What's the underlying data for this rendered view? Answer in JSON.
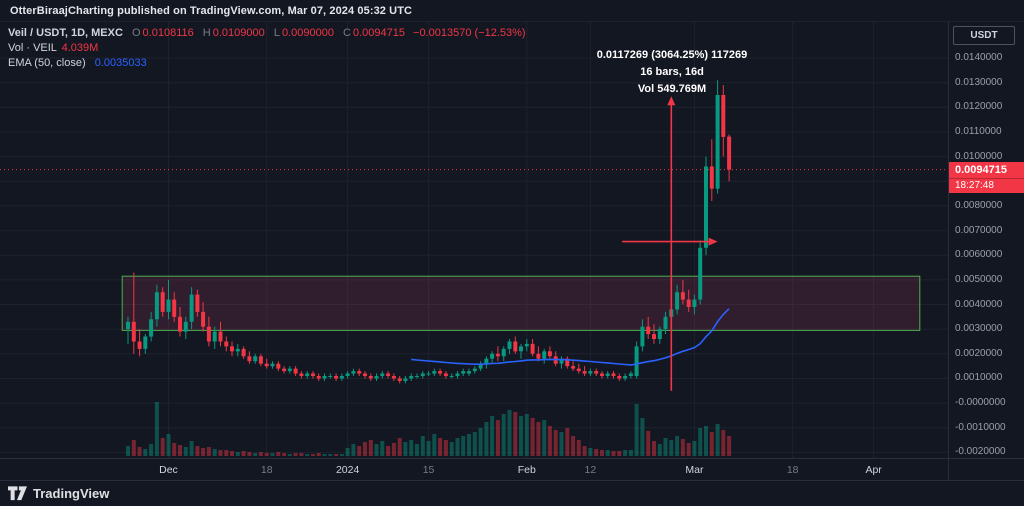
{
  "header": {
    "published_line": "OtterBiraajCharting published on TradingView.com, Mar 07, 2024 05:32 UTC"
  },
  "legend": {
    "title": "Veil / USDT, 1D, MEXC",
    "o_label": "O",
    "o": "0.0108116",
    "h_label": "H",
    "h": "0.0109000",
    "l_label": "L",
    "l": "0.0090000",
    "c_label": "C",
    "c": "0.0094715",
    "change": "−0.0013570 (−12.53%)",
    "vol_label": "Vol · VEIL",
    "vol_value": "4.039M",
    "ema_label": "EMA (50, close)",
    "ema_value": "0.0035033"
  },
  "annotation": {
    "line1": "0.0117269 (3064.25%) 117269",
    "line2": "16 bars, 16d",
    "line3": "Vol 549.769M"
  },
  "price_axis": {
    "currency_button": "USDT",
    "last_price_label": "0.0094715",
    "countdown": "18:27:48"
  },
  "watermark": {
    "brand": "TradingView"
  },
  "colors": {
    "background": "#131722",
    "grid": "#1e222d",
    "up": "#089981",
    "down": "#f23645",
    "vol_up": "rgba(8,153,129,0.45)",
    "vol_down": "rgba(242,54,69,0.45)",
    "ema": "#2962ff",
    "rect_border": "#4caf50",
    "rect_fill": "rgba(155,60,96,0.22)",
    "arrow": "#f23645",
    "badge_bg": "#f23645",
    "text_primary": "#d1d4dc",
    "text_secondary": "#787b86"
  },
  "chart_data": {
    "type": "candlestick",
    "title": "Veil / USDT, 1D, MEXC",
    "interval": "1D",
    "last_price": 0.0094715,
    "ema_period": 50,
    "y_ticks": [
      "0.0140000",
      "0.0130000",
      "0.0120000",
      "0.0110000",
      "0.0100000",
      "0.0090000",
      "0.0080000",
      "0.0070000",
      "0.0060000",
      "0.0050000",
      "0.0040000",
      "0.0030000",
      "0.0020000",
      "0.0010000",
      "-0.0000000",
      "-0.0010000",
      "-0.0020000"
    ],
    "x_labels": [
      {
        "text": "Dec",
        "day": 7,
        "major": true
      },
      {
        "text": "18",
        "day": 24,
        "major": false
      },
      {
        "text": "2024",
        "day": 38,
        "major": true
      },
      {
        "text": "15",
        "day": 52,
        "major": false
      },
      {
        "text": "Feb",
        "day": 69,
        "major": true
      },
      {
        "text": "12",
        "day": 80,
        "major": false
      },
      {
        "text": "Mar",
        "day": 98,
        "major": true
      },
      {
        "text": "18",
        "day": 115,
        "major": false
      },
      {
        "text": "Apr",
        "day": 129,
        "major": true
      }
    ],
    "rectangle": {
      "day_start": -1,
      "day_end": 137,
      "price_top": 0.00515,
      "price_bottom": 0.00295
    },
    "measure_arrow": {
      "day": 94,
      "price_from": 0.0005,
      "price_to": 0.01245
    },
    "horiz_arrow": {
      "day_from": 85.5,
      "day_to": 102,
      "price": 0.00655
    },
    "candles": [
      [
        0.003,
        0.0035,
        0.0024,
        0.0033,
        10
      ],
      [
        0.0033,
        0.0053,
        0.002,
        0.0025,
        16
      ],
      [
        0.0025,
        0.003,
        0.0019,
        0.0022,
        9
      ],
      [
        0.0022,
        0.0028,
        0.002,
        0.0027,
        7
      ],
      [
        0.0027,
        0.0037,
        0.0025,
        0.0034,
        12
      ],
      [
        0.0034,
        0.0048,
        0.0031,
        0.0045,
        54
      ],
      [
        0.0045,
        0.0047,
        0.0035,
        0.0037,
        18
      ],
      [
        0.0037,
        0.005,
        0.0034,
        0.0042,
        22
      ],
      [
        0.0042,
        0.0045,
        0.0033,
        0.0035,
        13
      ],
      [
        0.0035,
        0.0039,
        0.0027,
        0.0029,
        11
      ],
      [
        0.0029,
        0.0035,
        0.0026,
        0.0033,
        9
      ],
      [
        0.0033,
        0.0047,
        0.003,
        0.0044,
        15
      ],
      [
        0.0044,
        0.0046,
        0.0035,
        0.0037,
        10
      ],
      [
        0.0037,
        0.0041,
        0.0029,
        0.0031,
        8
      ],
      [
        0.0031,
        0.0035,
        0.0023,
        0.0025,
        9
      ],
      [
        0.0025,
        0.0031,
        0.0022,
        0.0029,
        7
      ],
      [
        0.0029,
        0.0033,
        0.0023,
        0.0025,
        6
      ],
      [
        0.0025,
        0.0027,
        0.0021,
        0.0023,
        6
      ],
      [
        0.0023,
        0.0025,
        0.0019,
        0.0021,
        5
      ],
      [
        0.0021,
        0.0024,
        0.0019,
        0.0022,
        4
      ],
      [
        0.0022,
        0.0023,
        0.0018,
        0.0019,
        5
      ],
      [
        0.0019,
        0.0021,
        0.0016,
        0.0017,
        4
      ],
      [
        0.0017,
        0.002,
        0.0016,
        0.0019,
        3
      ],
      [
        0.0019,
        0.002,
        0.0015,
        0.0016,
        4
      ],
      [
        0.0016,
        0.0018,
        0.0014,
        0.0015,
        3
      ],
      [
        0.0015,
        0.0017,
        0.0014,
        0.0016,
        3
      ],
      [
        0.0016,
        0.0017,
        0.0013,
        0.0014,
        4
      ],
      [
        0.0014,
        0.0015,
        0.0012,
        0.0013,
        3
      ],
      [
        0.0013,
        0.0015,
        0.0012,
        0.0014,
        2
      ],
      [
        0.0014,
        0.0015,
        0.0011,
        0.0012,
        3
      ],
      [
        0.0012,
        0.0013,
        0.001,
        0.0011,
        3
      ],
      [
        0.0011,
        0.0013,
        0.001,
        0.0012,
        2
      ],
      [
        0.0012,
        0.0013,
        0.001,
        0.0011,
        2
      ],
      [
        0.0011,
        0.0012,
        0.0009,
        0.001,
        3
      ],
      [
        0.001,
        0.0012,
        0.0009,
        0.0011,
        2
      ],
      [
        0.0011,
        0.0012,
        0.001,
        0.0011,
        2
      ],
      [
        0.0011,
        0.0012,
        0.0009,
        0.001,
        2
      ],
      [
        0.001,
        0.0012,
        0.0009,
        0.0011,
        2
      ],
      [
        0.0011,
        0.0013,
        0.001,
        0.0012,
        8
      ],
      [
        0.0012,
        0.0014,
        0.0011,
        0.0013,
        12
      ],
      [
        0.0013,
        0.0014,
        0.0011,
        0.0012,
        10
      ],
      [
        0.0012,
        0.0013,
        0.001,
        0.0011,
        14
      ],
      [
        0.0011,
        0.0012,
        0.0009,
        0.001,
        16
      ],
      [
        0.001,
        0.0012,
        0.0009,
        0.0011,
        12
      ],
      [
        0.0011,
        0.0013,
        0.001,
        0.0012,
        15
      ],
      [
        0.0012,
        0.0013,
        0.001,
        0.0011,
        10
      ],
      [
        0.0011,
        0.0012,
        0.0009,
        0.001,
        13
      ],
      [
        0.001,
        0.0011,
        0.0008,
        0.0009,
        18
      ],
      [
        0.0009,
        0.0011,
        0.0008,
        0.001,
        14
      ],
      [
        0.001,
        0.0012,
        0.0009,
        0.0011,
        16
      ],
      [
        0.0011,
        0.0012,
        0.001,
        0.0011,
        12
      ],
      [
        0.0011,
        0.0013,
        0.001,
        0.0012,
        20
      ],
      [
        0.0012,
        0.0013,
        0.0011,
        0.0012,
        15
      ],
      [
        0.0012,
        0.0014,
        0.0011,
        0.0013,
        22
      ],
      [
        0.0013,
        0.0014,
        0.0011,
        0.0012,
        18
      ],
      [
        0.0012,
        0.0013,
        0.001,
        0.0011,
        16
      ],
      [
        0.0011,
        0.0012,
        0.001,
        0.0011,
        14
      ],
      [
        0.0011,
        0.0013,
        0.001,
        0.0012,
        18
      ],
      [
        0.0012,
        0.0014,
        0.0011,
        0.0013,
        20
      ],
      [
        0.0012,
        0.0014,
        0.0011,
        0.0013,
        22
      ],
      [
        0.0013,
        0.0015,
        0.0012,
        0.0014,
        24
      ],
      [
        0.0014,
        0.0017,
        0.0013,
        0.0016,
        28
      ],
      [
        0.0016,
        0.0019,
        0.0014,
        0.0018,
        34
      ],
      [
        0.0018,
        0.0021,
        0.0016,
        0.002,
        40
      ],
      [
        0.002,
        0.0023,
        0.0017,
        0.0019,
        36
      ],
      [
        0.0019,
        0.0023,
        0.0017,
        0.0022,
        42
      ],
      [
        0.0022,
        0.0026,
        0.002,
        0.0025,
        46
      ],
      [
        0.0025,
        0.0027,
        0.002,
        0.0021,
        44
      ],
      [
        0.0021,
        0.0024,
        0.0018,
        0.0023,
        40
      ],
      [
        0.0023,
        0.0026,
        0.0021,
        0.0024,
        42
      ],
      [
        0.0024,
        0.0026,
        0.0019,
        0.002,
        38
      ],
      [
        0.002,
        0.0023,
        0.0017,
        0.0018,
        34
      ],
      [
        0.0018,
        0.0022,
        0.0016,
        0.0021,
        36
      ],
      [
        0.0021,
        0.0023,
        0.0018,
        0.0019,
        30
      ],
      [
        0.0019,
        0.0021,
        0.0015,
        0.0016,
        26
      ],
      [
        0.0016,
        0.0019,
        0.0014,
        0.0018,
        24
      ],
      [
        0.0018,
        0.0019,
        0.0014,
        0.0015,
        28
      ],
      [
        0.0015,
        0.0017,
        0.0013,
        0.0014,
        20
      ],
      [
        0.0014,
        0.0016,
        0.0012,
        0.0013,
        16
      ],
      [
        0.0013,
        0.0015,
        0.0011,
        0.0012,
        10
      ],
      [
        0.0012,
        0.0014,
        0.0011,
        0.0013,
        8
      ],
      [
        0.0013,
        0.0014,
        0.0011,
        0.0012,
        7
      ],
      [
        0.0012,
        0.0013,
        0.001,
        0.0011,
        6
      ],
      [
        0.0011,
        0.0013,
        0.001,
        0.0012,
        6
      ],
      [
        0.0012,
        0.0013,
        0.001,
        0.0011,
        5
      ],
      [
        0.0011,
        0.0012,
        0.0009,
        0.001,
        5
      ],
      [
        0.001,
        0.0012,
        0.0009,
        0.0011,
        6
      ],
      [
        0.0011,
        0.0013,
        0.001,
        0.0012,
        6
      ],
      [
        0.0011,
        0.0025,
        0.001,
        0.0023,
        52
      ],
      [
        0.0023,
        0.0034,
        0.0021,
        0.0031,
        38
      ],
      [
        0.0031,
        0.0035,
        0.0026,
        0.0028,
        25
      ],
      [
        0.0028,
        0.0032,
        0.0024,
        0.0026,
        15
      ],
      [
        0.0026,
        0.0031,
        0.0024,
        0.003,
        12
      ],
      [
        0.003,
        0.0037,
        0.0028,
        0.0035,
        18
      ],
      [
        0.0035,
        0.004,
        0.0031,
        0.0038,
        16
      ],
      [
        0.0038,
        0.0048,
        0.0036,
        0.0045,
        20
      ],
      [
        0.0045,
        0.005,
        0.004,
        0.0042,
        17
      ],
      [
        0.0042,
        0.0046,
        0.0037,
        0.0039,
        13
      ],
      [
        0.0039,
        0.0044,
        0.0036,
        0.0042,
        15
      ],
      [
        0.0042,
        0.0066,
        0.004,
        0.0063,
        28
      ],
      [
        0.0063,
        0.01,
        0.006,
        0.0096,
        30
      ],
      [
        0.0096,
        0.0107,
        0.0082,
        0.0087,
        24
      ],
      [
        0.0087,
        0.0131,
        0.0085,
        0.0125,
        32
      ],
      [
        0.0125,
        0.0129,
        0.01,
        0.0108,
        26
      ],
      [
        0.0108116,
        0.0109,
        0.009,
        0.0094715,
        20
      ]
    ]
  }
}
